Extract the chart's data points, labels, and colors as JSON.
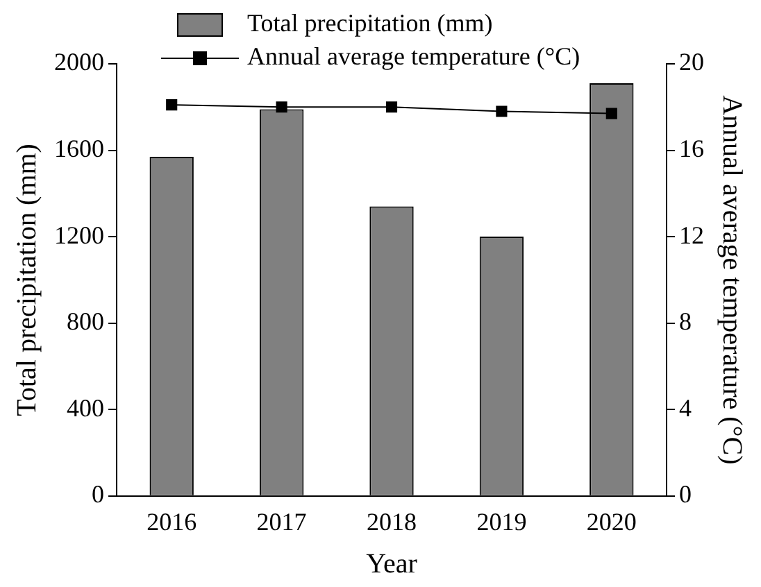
{
  "chart_data": {
    "type": "bar",
    "xlabel": "Year",
    "ylabel": "Total precipitation (mm)",
    "y2label": "Annual average temperature (°C)",
    "categories": [
      "2016",
      "2017",
      "2018",
      "2019",
      "2020"
    ],
    "series": [
      {
        "name": "Total precipitation (mm)",
        "color": "#808080",
        "values": [
          1570,
          1790,
          1340,
          1200,
          1910
        ]
      },
      {
        "name": "Annual average temperature (°C)",
        "type": "line",
        "axis": "y2",
        "color": "#000000",
        "values": [
          18.1,
          18.0,
          18.0,
          17.8,
          17.7
        ]
      }
    ],
    "ylim": [
      0,
      2000
    ],
    "yticks": [
      0,
      400,
      800,
      1200,
      1600,
      2000
    ],
    "y2lim": [
      0,
      20
    ],
    "y2ticks": [
      0,
      4,
      8,
      12,
      16,
      20
    ],
    "grid": false,
    "legend": "top",
    "marker": "square",
    "line_style": "solid"
  }
}
